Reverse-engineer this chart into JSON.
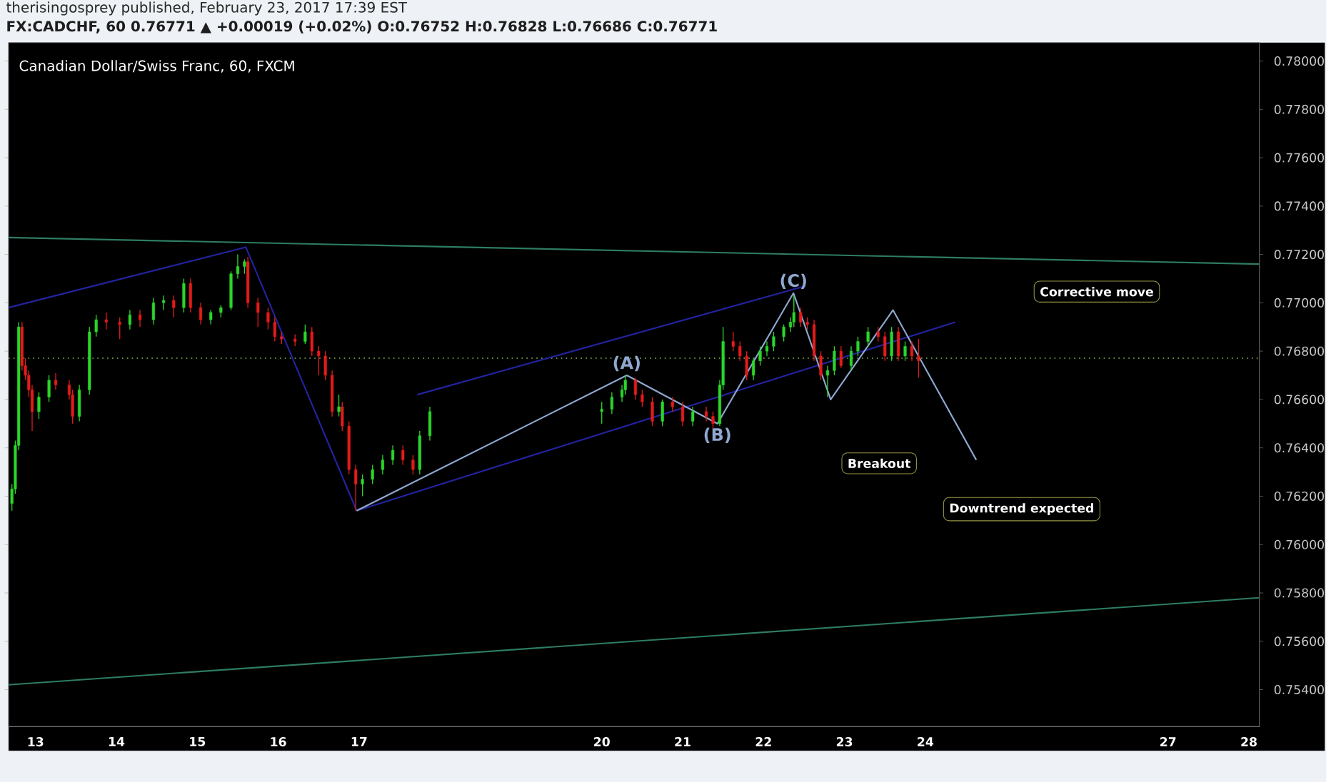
{
  "chart_data": {
    "type": "candlestick",
    "title": "Canadian Dollar/Swiss Franc, 60, FXCM",
    "subtitle": "FX:CADCHF, 60 0.76771 ▲ +0.00019 (+0.02%) O:0.76752 H:0.76828 L:0.76686 C:0.76771",
    "annotations": [
      "therisingosprey published, February 23, 2017 17:39 EST",
      "Corrective move",
      "Breakout",
      "Downtrend expected"
    ],
    "x": [
      "2017-02-12T17:00",
      "2017-02-12T18:00",
      "2017-02-12T19:00",
      "2017-02-12T20:00",
      "2017-02-12T21:00",
      "2017-02-12T22:00",
      "2017-02-12T23:00",
      "2017-02-13T01:00",
      "2017-02-13T04:00",
      "2017-02-13T06:00",
      "2017-02-13T10:00",
      "2017-02-13T11:00",
      "2017-02-13T13:00",
      "2017-02-13T16:00",
      "2017-02-13T18:00",
      "2017-02-13T21:00",
      "2017-02-14T01:00",
      "2017-02-14T04:00",
      "2017-02-14T07:00",
      "2017-02-14T11:00",
      "2017-02-14T14:00",
      "2017-02-14T17:00",
      "2017-02-14T20:00",
      "2017-02-14T22:00",
      "2017-02-15T01:00",
      "2017-02-15T04:00",
      "2017-02-15T07:00",
      "2017-02-15T10:00",
      "2017-02-15T12:00",
      "2017-02-15T14:00",
      "2017-02-15T15:00",
      "2017-02-15T18:00",
      "2017-02-15T21:00",
      "2017-02-15T23:00",
      "2017-02-16T01:00",
      "2017-02-16T05:00",
      "2017-02-16T08:00",
      "2017-02-16T10:00",
      "2017-02-16T12:00",
      "2017-02-16T14:00",
      "2017-02-16T16:00",
      "2017-02-16T18:00",
      "2017-02-16T19:00",
      "2017-02-16T21:00",
      "2017-02-16T23:00",
      "2017-02-17T01:00",
      "2017-02-17T04:00",
      "2017-02-17T07:00",
      "2017-02-17T10:00",
      "2017-02-17T13:00",
      "2017-02-17T16:00",
      "2017-02-17T18:00",
      "2017-02-17T21:00",
      "2017-02-20T00:00",
      "2017-02-20T03:00",
      "2017-02-20T06:00",
      "2017-02-20T07:00",
      "2017-02-20T10:00",
      "2017-02-20T12:00",
      "2017-02-20T15:00",
      "2017-02-20T18:00",
      "2017-02-20T21:00",
      "2017-02-21T00:00",
      "2017-02-21T03:00",
      "2017-02-21T07:00",
      "2017-02-21T09:00",
      "2017-02-21T11:00",
      "2017-02-21T12:00",
      "2017-02-21T15:00",
      "2017-02-21T17:00",
      "2017-02-21T19:00",
      "2017-02-21T21:00",
      "2017-02-21T23:00",
      "2017-02-22T01:00",
      "2017-02-22T03:00",
      "2017-02-22T06:00",
      "2017-02-22T08:00",
      "2017-02-22T09:00",
      "2017-02-22T11:00",
      "2017-02-22T13:00",
      "2017-02-22T15:00",
      "2017-02-22T17:00",
      "2017-02-22T19:00",
      "2017-02-22T21:00",
      "2017-02-22T23:00",
      "2017-02-23T02:00",
      "2017-02-23T04:00",
      "2017-02-23T07:00",
      "2017-02-23T10:00",
      "2017-02-23T12:00",
      "2017-02-23T14:00",
      "2017-02-23T16:00",
      "2017-02-23T18:00",
      "2017-02-23T20:00",
      "2017-02-23T22:00"
    ],
    "ohlc": [
      [
        0.7617,
        0.7625,
        0.7614,
        0.7623
      ],
      [
        0.7623,
        0.7643,
        0.7621,
        0.7641
      ],
      [
        0.7641,
        0.7692,
        0.7639,
        0.769
      ],
      [
        0.769,
        0.7692,
        0.7672,
        0.7674
      ],
      [
        0.7674,
        0.7677,
        0.7668,
        0.767
      ],
      [
        0.767,
        0.7672,
        0.7661,
        0.7664
      ],
      [
        0.7664,
        0.7666,
        0.7647,
        0.7655
      ],
      [
        0.7655,
        0.7663,
        0.7652,
        0.7661
      ],
      [
        0.7661,
        0.767,
        0.7659,
        0.7668
      ],
      [
        0.7668,
        0.7671,
        0.7664,
        0.7666
      ],
      [
        0.7666,
        0.7668,
        0.766,
        0.7662
      ],
      [
        0.7662,
        0.7664,
        0.765,
        0.7653
      ],
      [
        0.7653,
        0.7666,
        0.7651,
        0.7664
      ],
      [
        0.7664,
        0.769,
        0.7662,
        0.7688
      ],
      [
        0.7688,
        0.7695,
        0.7686,
        0.7693
      ],
      [
        0.7693,
        0.7696,
        0.7689,
        0.7692
      ],
      [
        0.7692,
        0.7694,
        0.7685,
        0.7691
      ],
      [
        0.7691,
        0.7697,
        0.7689,
        0.7695
      ],
      [
        0.7695,
        0.7697,
        0.769,
        0.7693
      ],
      [
        0.7693,
        0.7702,
        0.7691,
        0.77
      ],
      [
        0.77,
        0.7703,
        0.7697,
        0.7701
      ],
      [
        0.7701,
        0.7703,
        0.7694,
        0.7698
      ],
      [
        0.7698,
        0.771,
        0.7696,
        0.7708
      ],
      [
        0.7708,
        0.771,
        0.7696,
        0.7698
      ],
      [
        0.7698,
        0.77,
        0.7691,
        0.7693
      ],
      [
        0.7693,
        0.7697,
        0.7691,
        0.7696
      ],
      [
        0.7696,
        0.7699,
        0.7694,
        0.7698
      ],
      [
        0.7698,
        0.7713,
        0.7697,
        0.7712
      ],
      [
        0.7712,
        0.772,
        0.771,
        0.7715
      ],
      [
        0.7715,
        0.7718,
        0.7712,
        0.7717
      ],
      [
        0.7717,
        0.7719,
        0.7698,
        0.77
      ],
      [
        0.77,
        0.7702,
        0.769,
        0.7696
      ],
      [
        0.7696,
        0.7698,
        0.7689,
        0.7692
      ],
      [
        0.7692,
        0.7694,
        0.7684,
        0.7686
      ],
      [
        0.7686,
        0.7688,
        0.7683,
        0.7685
      ],
      [
        0.7685,
        0.7687,
        0.7682,
        0.7684
      ],
      [
        0.7684,
        0.7691,
        0.7683,
        0.7688
      ],
      [
        0.7688,
        0.769,
        0.7678,
        0.768
      ],
      [
        0.768,
        0.7682,
        0.767,
        0.7678
      ],
      [
        0.7678,
        0.768,
        0.7668,
        0.767
      ],
      [
        0.767,
        0.7672,
        0.7653,
        0.7655
      ],
      [
        0.7655,
        0.7662,
        0.7653,
        0.7657
      ],
      [
        0.7657,
        0.7659,
        0.7647,
        0.7649
      ],
      [
        0.7649,
        0.7651,
        0.7629,
        0.7631
      ],
      [
        0.7631,
        0.7633,
        0.7614,
        0.7625
      ],
      [
        0.7625,
        0.7629,
        0.762,
        0.7627
      ],
      [
        0.7627,
        0.7633,
        0.7625,
        0.7631
      ],
      [
        0.7631,
        0.7637,
        0.7629,
        0.7635
      ],
      [
        0.7635,
        0.7641,
        0.7633,
        0.7639
      ],
      [
        0.7639,
        0.7641,
        0.7633,
        0.7635
      ],
      [
        0.7635,
        0.7637,
        0.7629,
        0.7631
      ],
      [
        0.7631,
        0.7647,
        0.7629,
        0.7645
      ],
      [
        0.7645,
        0.7657,
        0.7643,
        0.7655
      ],
      [
        0.7655,
        0.7659,
        0.765,
        0.7656
      ],
      [
        0.7656,
        0.7663,
        0.7654,
        0.7661
      ],
      [
        0.7661,
        0.7666,
        0.7659,
        0.7664
      ],
      [
        0.7664,
        0.767,
        0.7662,
        0.7668
      ],
      [
        0.7668,
        0.7669,
        0.766,
        0.7662
      ],
      [
        0.7662,
        0.7664,
        0.7657,
        0.7659
      ],
      [
        0.7659,
        0.7661,
        0.7649,
        0.7651
      ],
      [
        0.7651,
        0.766,
        0.7649,
        0.7659
      ],
      [
        0.7659,
        0.7661,
        0.7655,
        0.7657
      ],
      [
        0.7657,
        0.7659,
        0.7649,
        0.7651
      ],
      [
        0.7651,
        0.7657,
        0.7649,
        0.7655
      ],
      [
        0.7655,
        0.7657,
        0.7651,
        0.7653
      ],
      [
        0.7653,
        0.7655,
        0.7648,
        0.765
      ],
      [
        0.765,
        0.7668,
        0.7649,
        0.7666
      ],
      [
        0.7666,
        0.769,
        0.7664,
        0.7684
      ],
      [
        0.7684,
        0.7688,
        0.768,
        0.7682
      ],
      [
        0.7682,
        0.7684,
        0.7676,
        0.7678
      ],
      [
        0.7678,
        0.768,
        0.7668,
        0.767
      ],
      [
        0.767,
        0.7677,
        0.7668,
        0.7676
      ],
      [
        0.7676,
        0.7682,
        0.7674,
        0.768
      ],
      [
        0.768,
        0.7684,
        0.7678,
        0.7682
      ],
      [
        0.7682,
        0.7688,
        0.768,
        0.7686
      ],
      [
        0.7686,
        0.7691,
        0.7684,
        0.769
      ],
      [
        0.769,
        0.7694,
        0.7688,
        0.7692
      ],
      [
        0.7692,
        0.7703,
        0.769,
        0.7696
      ],
      [
        0.7696,
        0.7698,
        0.769,
        0.7692
      ],
      [
        0.7692,
        0.7694,
        0.7689,
        0.7691
      ],
      [
        0.7691,
        0.7693,
        0.7676,
        0.7678
      ],
      [
        0.7678,
        0.768,
        0.7668,
        0.767
      ],
      [
        0.767,
        0.7674,
        0.7661,
        0.7672
      ],
      [
        0.7672,
        0.7682,
        0.767,
        0.768
      ],
      [
        0.768,
        0.7682,
        0.7673,
        0.7674
      ],
      [
        0.7674,
        0.7682,
        0.7672,
        0.768
      ],
      [
        0.768,
        0.7686,
        0.7678,
        0.7684
      ],
      [
        0.7684,
        0.769,
        0.7682,
        0.7688
      ],
      [
        0.7688,
        0.769,
        0.7684,
        0.7686
      ],
      [
        0.7686,
        0.7688,
        0.7676,
        0.7678
      ],
      [
        0.7678,
        0.769,
        0.7676,
        0.7688
      ],
      [
        0.7688,
        0.769,
        0.7676,
        0.7678
      ],
      [
        0.7678,
        0.7684,
        0.7676,
        0.7682
      ],
      [
        0.7682,
        0.7684,
        0.7676,
        0.7678
      ],
      [
        0.7678,
        0.7685,
        0.7669,
        0.7676
      ]
    ],
    "series": [
      {
        "type": "line",
        "color": "#2e7d62",
        "x": [
          "2017-02-12T16:00",
          "2017-02-28T03:07"
        ],
        "values": [
          0.7727,
          0.7716
        ]
      },
      {
        "type": "line",
        "color": "#2e7d62",
        "x": [
          "2017-02-12T16:00",
          "2017-02-28T03:07"
        ],
        "values": [
          0.7542,
          0.7578
        ]
      },
      {
        "type": "line",
        "color": "#2323a0",
        "x": [
          "2017-02-12T16:00",
          "2017-02-15T14:24",
          "2017-02-16T23:17"
        ],
        "values": [
          0.7698,
          0.7723,
          0.7614
        ]
      },
      {
        "type": "line",
        "color": "#2323a0",
        "x": [
          "2017-02-16T23:17",
          "2017-02-24T08:53"
        ],
        "values": [
          0.7614,
          0.7692
        ]
      },
      {
        "type": "line",
        "color": "#2323a0",
        "x": [
          "2017-02-17T17:17",
          "2017-02-22T12:29"
        ],
        "values": [
          0.7662,
          0.7707
        ]
      },
      {
        "type": "line",
        "color": "#8fa8d0",
        "x": [
          "2017-02-16T23:17",
          "2017-02-20T07:26",
          "2017-02-21T10:19",
          "2017-02-22T08:53",
          "2017-02-22T19:55",
          "2017-02-23T14:24",
          "2017-02-24T15:07"
        ],
        "values": [
          0.7614,
          0.767,
          0.765,
          0.7704,
          0.766,
          0.7697,
          0.7635
        ],
        "value_labels": [
          null,
          "(A)",
          "(B)",
          "(C)",
          null,
          null,
          null
        ]
      }
    ],
    "ref_lines": [
      {
        "axis": "y",
        "value": 0.76771,
        "color": "#8bc34a",
        "line_style": "dotted"
      }
    ],
    "xlim": [
      "2017-02-12T16:00",
      "2017-02-28T03:07"
    ],
    "ylim": [
      0.75247,
      0.78076
    ],
    "xticks": [
      {
        "value": "2017-02-13",
        "label": "13"
      },
      {
        "value": "2017-02-14",
        "label": "14"
      },
      {
        "value": "2017-02-15",
        "label": "15"
      },
      {
        "value": "2017-02-16",
        "label": "16"
      },
      {
        "value": "2017-02-17",
        "label": "17"
      },
      {
        "value": "2017-02-20",
        "label": "20"
      },
      {
        "value": "2017-02-21",
        "label": "21"
      },
      {
        "value": "2017-02-22",
        "label": "22"
      },
      {
        "value": "2017-02-23",
        "label": "23"
      },
      {
        "value": "2017-02-24",
        "label": "24"
      },
      {
        "value": "2017-02-27",
        "label": "27"
      },
      {
        "value": "2017-02-28",
        "label": "28"
      }
    ],
    "yticks": [
      {
        "value": 0.754,
        "label": "0.75400"
      },
      {
        "value": 0.756,
        "label": "0.75600"
      },
      {
        "value": 0.758,
        "label": "0.75800"
      },
      {
        "value": 0.76,
        "label": "0.76000"
      },
      {
        "value": 0.762,
        "label": "0.76200"
      },
      {
        "value": 0.764,
        "label": "0.76400"
      },
      {
        "value": 0.766,
        "label": "0.76600"
      },
      {
        "value": 0.768,
        "label": "0.76800"
      },
      {
        "value": 0.77,
        "label": "0.77000"
      },
      {
        "value": 0.772,
        "label": "0.77200"
      },
      {
        "value": 0.774,
        "label": "0.77400"
      },
      {
        "value": 0.776,
        "label": "0.77600"
      },
      {
        "value": 0.778,
        "label": "0.77800"
      },
      {
        "value": 0.78,
        "label": "0.78000"
      }
    ]
  }
}
